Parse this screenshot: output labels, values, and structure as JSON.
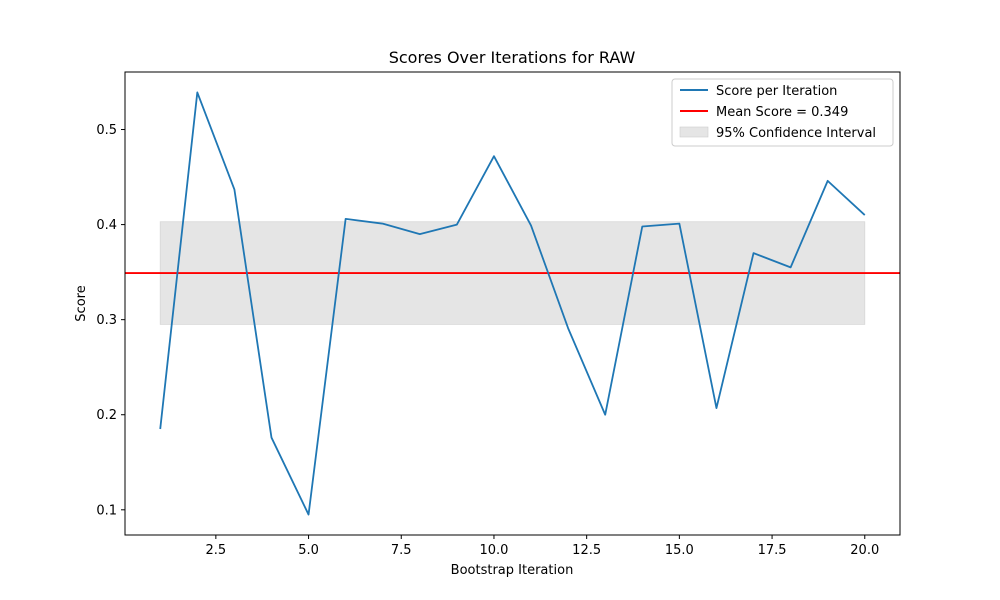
{
  "chart_data": {
    "type": "line",
    "title": "Scores Over Iterations for RAW",
    "xlabel": "Bootstrap Iteration",
    "ylabel": "Score",
    "xlim": [
      0.05,
      20.95
    ],
    "ylim": [
      0.0735,
      0.5605
    ],
    "x_ticks": [
      2.5,
      5.0,
      7.5,
      10.0,
      12.5,
      15.0,
      17.5,
      20.0
    ],
    "x_tick_labels": [
      "2.5",
      "5.0",
      "7.5",
      "10.0",
      "12.5",
      "15.0",
      "17.5",
      "20.0"
    ],
    "y_ticks": [
      0.1,
      0.2,
      0.3,
      0.4,
      0.5
    ],
    "y_tick_labels": [
      "0.1",
      "0.2",
      "0.3",
      "0.4",
      "0.5"
    ],
    "grid": false,
    "legend_position": "top-right",
    "x": [
      1,
      2,
      3,
      4,
      5,
      6,
      7,
      8,
      9,
      10,
      11,
      12,
      13,
      14,
      15,
      16,
      17,
      18,
      19,
      20
    ],
    "series": [
      {
        "name": "Score per Iteration",
        "color": "#1f77b4",
        "values": [
          0.185,
          0.539,
          0.437,
          0.176,
          0.095,
          0.406,
          0.401,
          0.39,
          0.4,
          0.472,
          0.399,
          0.291,
          0.2,
          0.398,
          0.401,
          0.207,
          0.37,
          0.355,
          0.446,
          0.41
        ]
      }
    ],
    "mean_line": {
      "label": "Mean Score = 0.349",
      "value": 0.349,
      "color": "#ff0000"
    },
    "confidence_interval": {
      "label": "95% Confidence Interval",
      "lower": 0.295,
      "upper": 0.403,
      "x_range": [
        1,
        20
      ],
      "color": "#e5e5e5"
    }
  }
}
